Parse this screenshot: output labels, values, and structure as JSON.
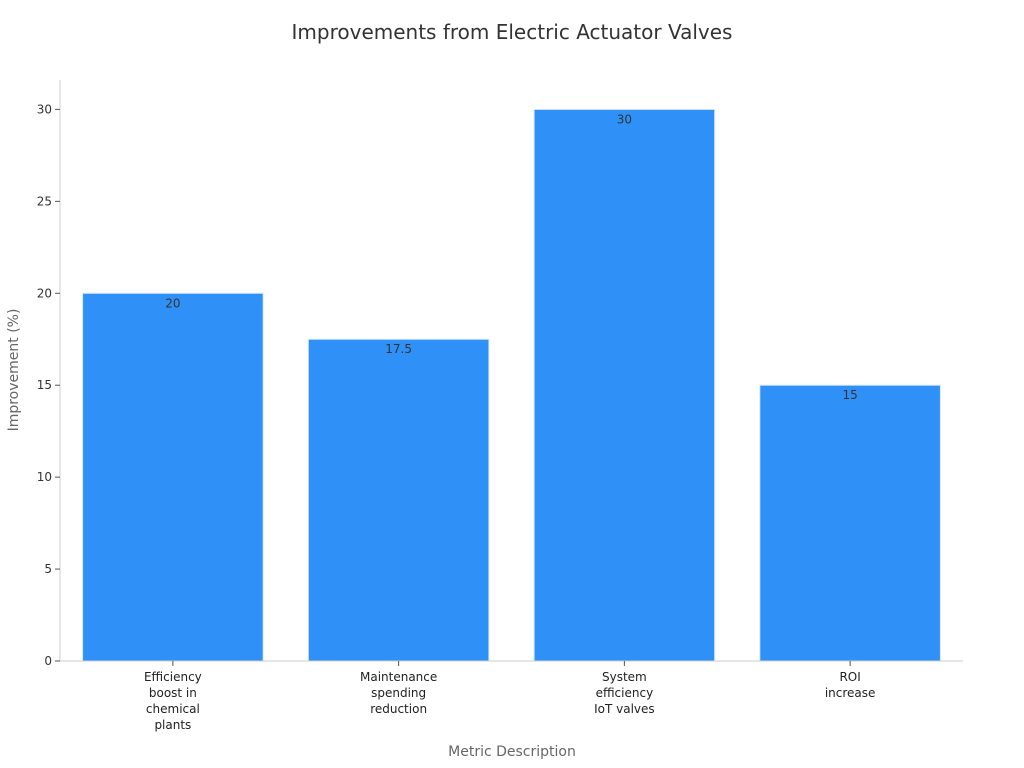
{
  "chart_data": {
    "type": "bar",
    "title": "Improvements from Electric Actuator Valves",
    "xlabel": "Metric Description",
    "ylabel": "Improvement (%)",
    "categories": [
      [
        "Efficiency",
        "boost in",
        "chemical",
        "plants"
      ],
      [
        "Maintenance",
        "spending",
        "reduction"
      ],
      [
        "System",
        "efficiency",
        "IoT valves"
      ],
      [
        "ROI",
        "increase"
      ]
    ],
    "values": [
      20,
      17.5,
      30,
      15
    ],
    "data_labels": [
      "20",
      "17.5",
      "30",
      "15"
    ],
    "ylim": [
      0,
      31.6
    ],
    "yticks": [
      0,
      5,
      10,
      15,
      20,
      25,
      30
    ],
    "grid": false,
    "legend": "none",
    "colors": {
      "bar": "#2f91f7",
      "bar_edge": "#d9e8f8",
      "axis": "#cccccc",
      "text": "#333333"
    }
  }
}
